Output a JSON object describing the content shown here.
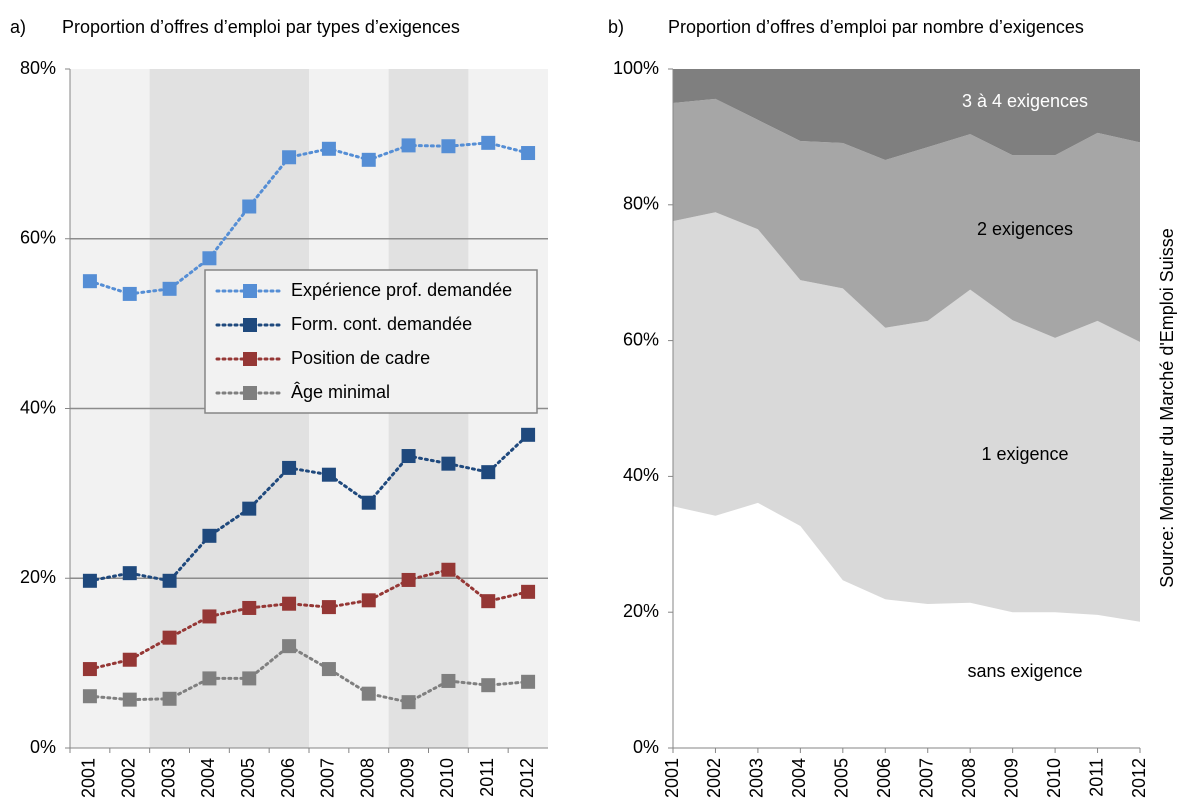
{
  "chart_data": [
    {
      "type": "line",
      "label": "a)",
      "title": "Proportion d’offres d’emploi par types d’exigences",
      "categories": [
        "2001",
        "2002",
        "2003",
        "2004",
        "2005",
        "2006",
        "2007",
        "2008",
        "2009",
        "2010",
        "2011",
        "2012"
      ],
      "ylim": [
        0,
        80
      ],
      "yticks": [
        {
          "value": 0,
          "label": "0%"
        },
        {
          "value": 20,
          "label": "20%"
        },
        {
          "value": 40,
          "label": "40%"
        },
        {
          "value": 60,
          "label": "60%"
        },
        {
          "value": 80,
          "label": "80%"
        }
      ],
      "grid": true,
      "legend": "right",
      "series": [
        {
          "name": "Expérience prof. demandée",
          "color": "#558ed5",
          "values": [
            55,
            53.5,
            54.1,
            57.7,
            63.8,
            69.6,
            70.6,
            69.3,
            71,
            70.9,
            71.3,
            70.1
          ]
        },
        {
          "name": "Form. cont. demandée",
          "color": "#1f497d",
          "values": [
            19.7,
            20.6,
            19.7,
            25,
            28.2,
            33,
            32.2,
            28.9,
            34.4,
            33.5,
            32.5,
            36.9
          ]
        },
        {
          "name": "Position de cadre",
          "color": "#953735",
          "values": [
            9.3,
            10.4,
            13,
            15.5,
            16.5,
            17,
            16.6,
            17.4,
            19.8,
            21,
            17.3,
            18.4
          ]
        },
        {
          "name": "Âge minimal",
          "color": "#7f7f7f",
          "values": [
            6.1,
            5.7,
            5.8,
            8.2,
            8.2,
            12,
            9.3,
            6.4,
            5.4,
            7.9,
            7.4,
            7.8
          ]
        }
      ]
    },
    {
      "type": "stacked_area",
      "label": "b)",
      "title": "Proportion d’offres d’emploi par nombre d’exigences",
      "categories": [
        "2001",
        "2002",
        "2003",
        "2004",
        "2005",
        "2006",
        "2007",
        "2008",
        "2009",
        "2010",
        "2011",
        "2012"
      ],
      "ylim": [
        0,
        100
      ],
      "yticks": [
        {
          "value": 0,
          "label": "0%"
        },
        {
          "value": 20,
          "label": "20%"
        },
        {
          "value": 40,
          "label": "40%"
        },
        {
          "value": 60,
          "label": "60%"
        },
        {
          "value": 80,
          "label": "80%"
        },
        {
          "value": 100,
          "label": "100%"
        }
      ],
      "series": [
        {
          "name": "sans exigence",
          "color": "#ffffff",
          "values": [
            35.6,
            34.2,
            36.1,
            32.7,
            24.7,
            21.9,
            21.2,
            21.4,
            20,
            20,
            19.6,
            18.6
          ]
        },
        {
          "name": "1 exigence",
          "color": "#d9d9d9",
          "values": [
            42,
            44.7,
            40.3,
            36.2,
            43,
            40,
            41.7,
            46.1,
            43,
            40.4,
            43.3,
            41.2
          ]
        },
        {
          "name": "2 exigences",
          "color": "#a6a6a6",
          "values": [
            17.4,
            16.7,
            16.1,
            20.5,
            21.4,
            24.7,
            25.6,
            22.9,
            24.3,
            26.9,
            27.7,
            29.4
          ]
        },
        {
          "name": "3 à 4 exigences",
          "color": "#7f7f7f",
          "values": [
            5,
            4.4,
            7.5,
            10.6,
            10.9,
            13.4,
            11.5,
            9.6,
            12.7,
            12.7,
            9.4,
            10.8
          ]
        }
      ]
    }
  ],
  "source": "Source: Moniteur du Marché d'Emploi Suisse"
}
